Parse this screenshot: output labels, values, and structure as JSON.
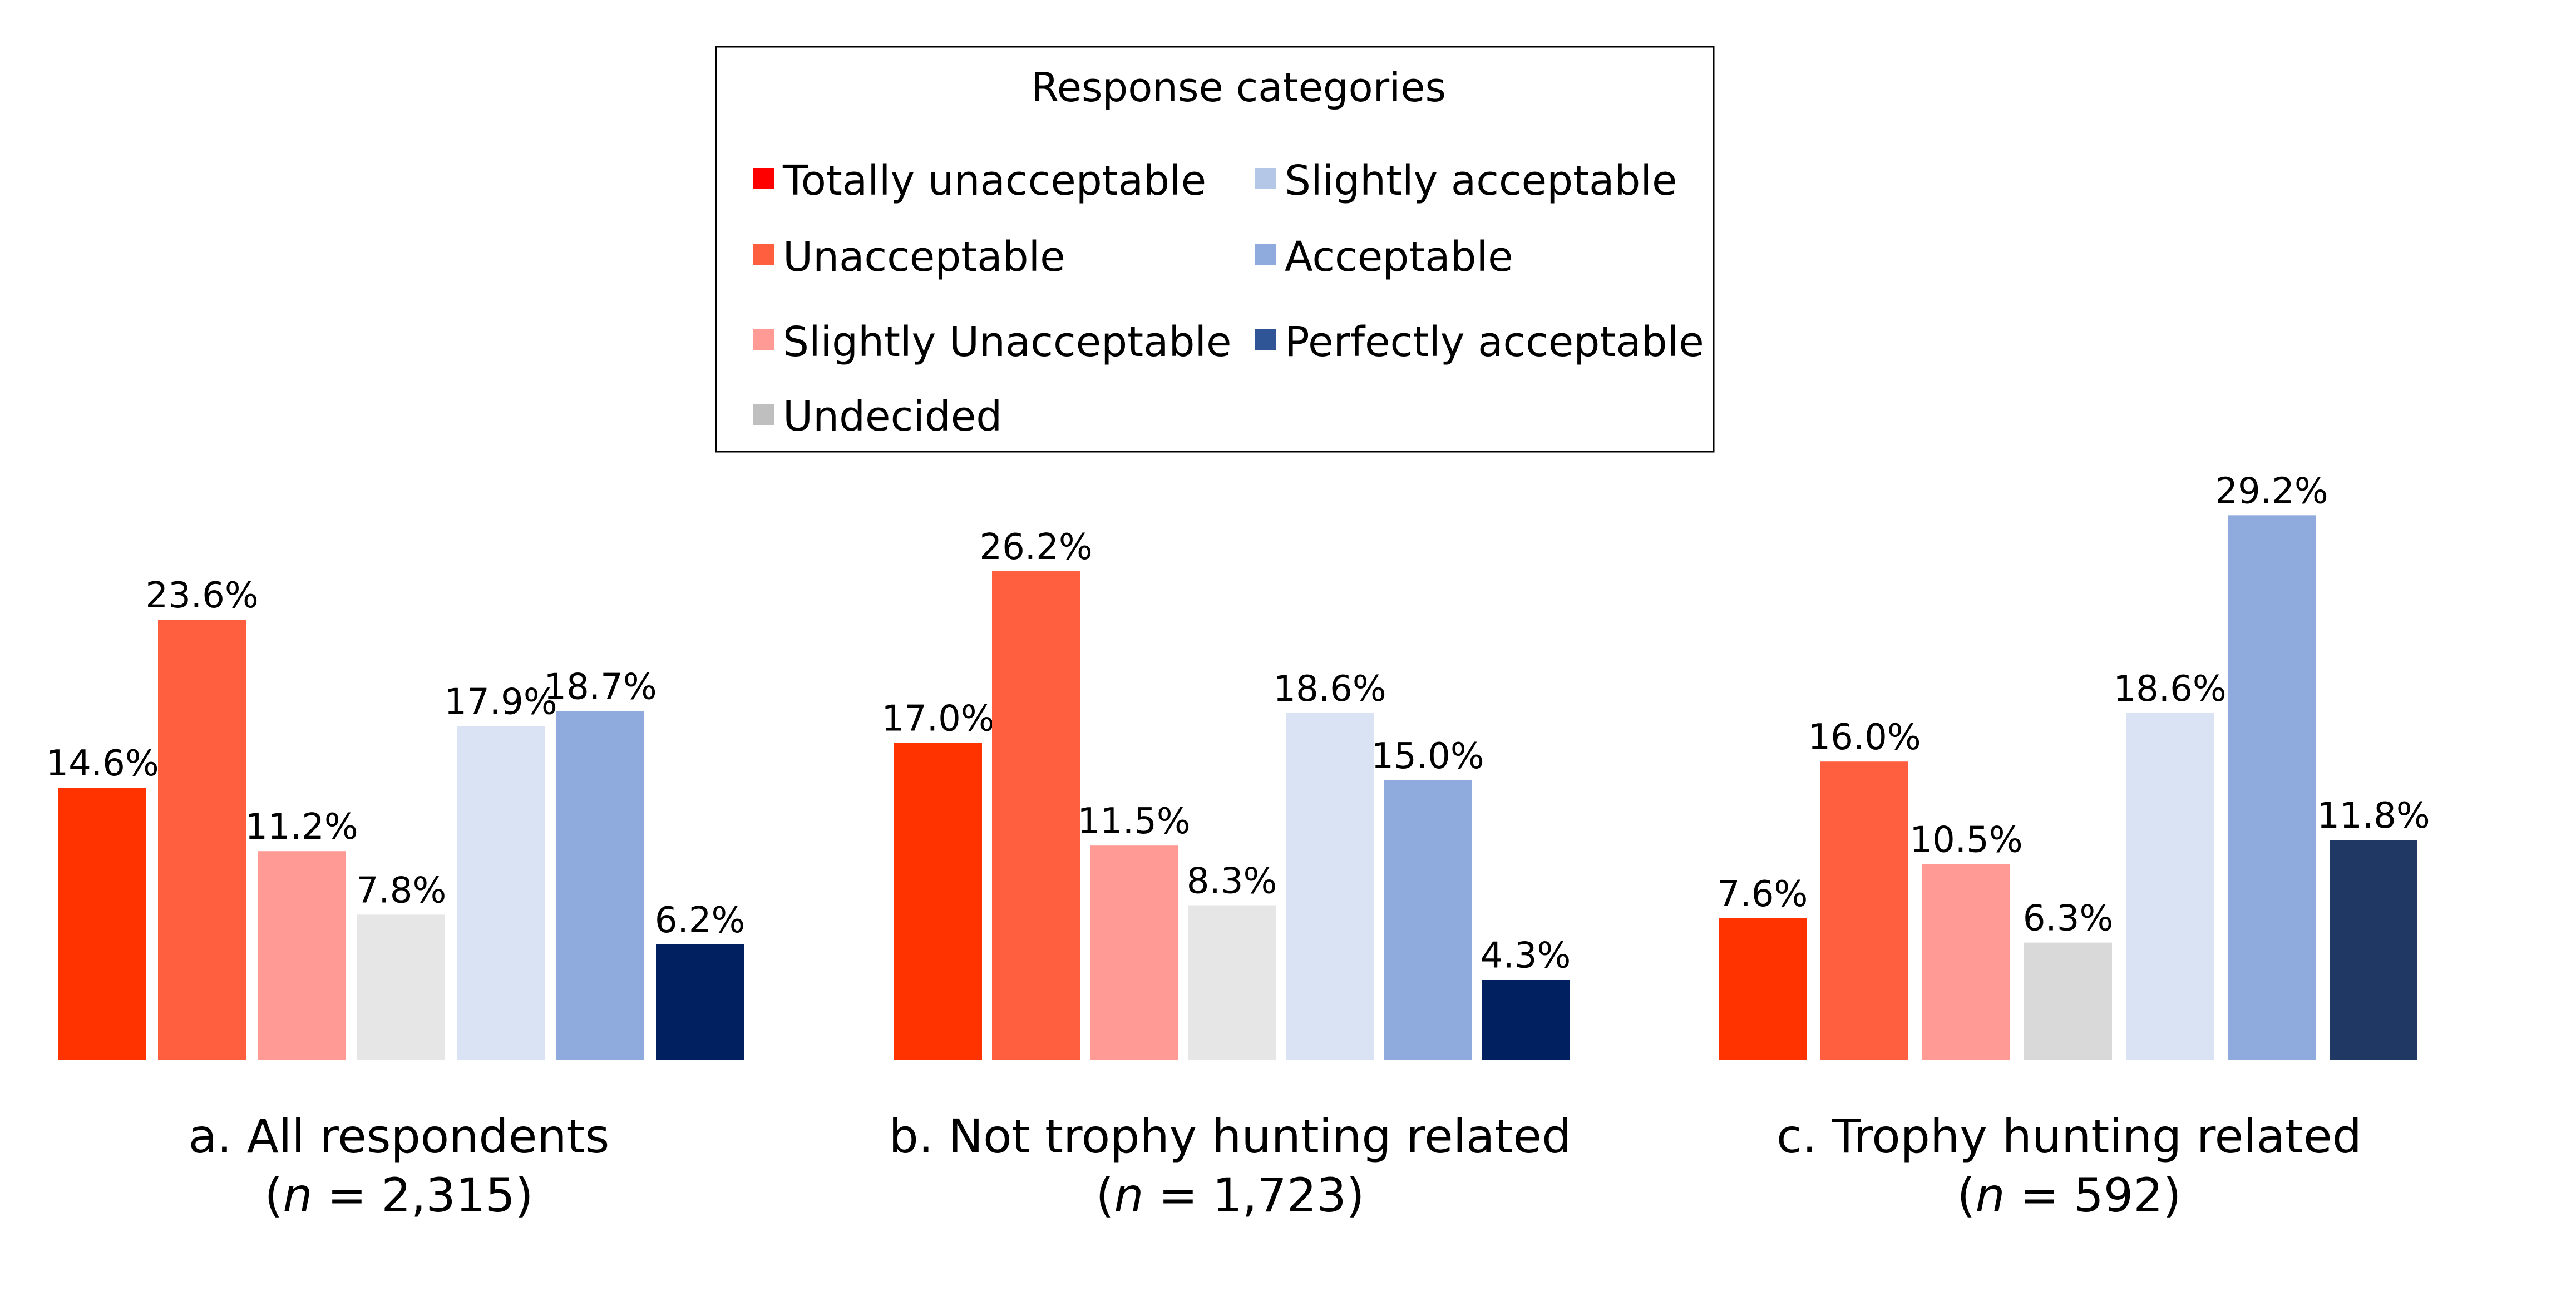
{
  "chart_data": [
    {
      "type": "bar",
      "title": "a. All respondents",
      "subtitle_parts": [
        "(",
        "n",
        " = 2,315)"
      ],
      "categories": [
        "Totally unacceptable",
        "Unacceptable",
        "Slightly Unacceptable",
        "Undecided",
        "Slightly acceptable",
        "Acceptable",
        "Perfectly acceptable"
      ],
      "values": [
        14.6,
        23.6,
        11.2,
        7.8,
        17.9,
        18.7,
        6.2
      ],
      "labels": [
        "14.6%",
        "23.6%",
        "11.2%",
        "7.8%",
        "17.9%",
        "18.7%",
        "6.2%"
      ],
      "colors": [
        "#FF3300",
        "#FF5F3F",
        "#FF9B94",
        "#E6E6E6",
        "#DAE3F3",
        "#8FAADC",
        "#002060"
      ]
    },
    {
      "type": "bar",
      "title": "b. Not trophy hunting related",
      "subtitle_parts": [
        "(",
        "n",
        " = 1,723)"
      ],
      "categories": [
        "Totally unacceptable",
        "Unacceptable",
        "Slightly Unacceptable",
        "Undecided",
        "Slightly acceptable",
        "Acceptable",
        "Perfectly acceptable"
      ],
      "values": [
        17.0,
        26.2,
        11.5,
        8.3,
        18.6,
        15.0,
        4.3
      ],
      "labels": [
        "17.0%",
        "26.2%",
        "11.5%",
        "8.3%",
        "18.6%",
        "15.0%",
        "4.3%"
      ],
      "colors": [
        "#FF3300",
        "#FF5F3F",
        "#FF9B94",
        "#E6E6E6",
        "#DAE3F3",
        "#8FAADC",
        "#002060"
      ]
    },
    {
      "type": "bar",
      "title": "c. Trophy hunting related",
      "subtitle_parts": [
        "(",
        "n",
        " = 592)"
      ],
      "categories": [
        "Totally unacceptable",
        "Unacceptable",
        "Slightly Unacceptable",
        "Undecided",
        "Slightly acceptable",
        "Acceptable",
        "Perfectly acceptable"
      ],
      "values": [
        7.6,
        16.0,
        10.5,
        6.3,
        18.6,
        29.2,
        11.8
      ],
      "labels": [
        "7.6%",
        "16.0%",
        "10.5%",
        "6.3%",
        "18.6%",
        "29.2%",
        "11.8%"
      ],
      "colors": [
        "#FF3300",
        "#FF5F3F",
        "#FF9B94",
        "#D9D9D9",
        "#DAE3F3",
        "#8FAADC",
        "#203864"
      ]
    }
  ],
  "legend": {
    "title": "Response categories",
    "placement": "top-center",
    "items": [
      {
        "label": "Totally unacceptable",
        "color": "#FF0000"
      },
      {
        "label": "Unacceptable",
        "color": "#FF5F3F"
      },
      {
        "label": "Slightly Unacceptable",
        "color": "#FF9B94"
      },
      {
        "label": "Undecided",
        "color": "#BFBFBF"
      },
      {
        "label": "Slightly acceptable",
        "color": "#B4C7E7"
      },
      {
        "label": "Acceptable",
        "color": "#8FAADC"
      },
      {
        "label": "Perfectly acceptable",
        "color": "#2F5597"
      }
    ]
  }
}
